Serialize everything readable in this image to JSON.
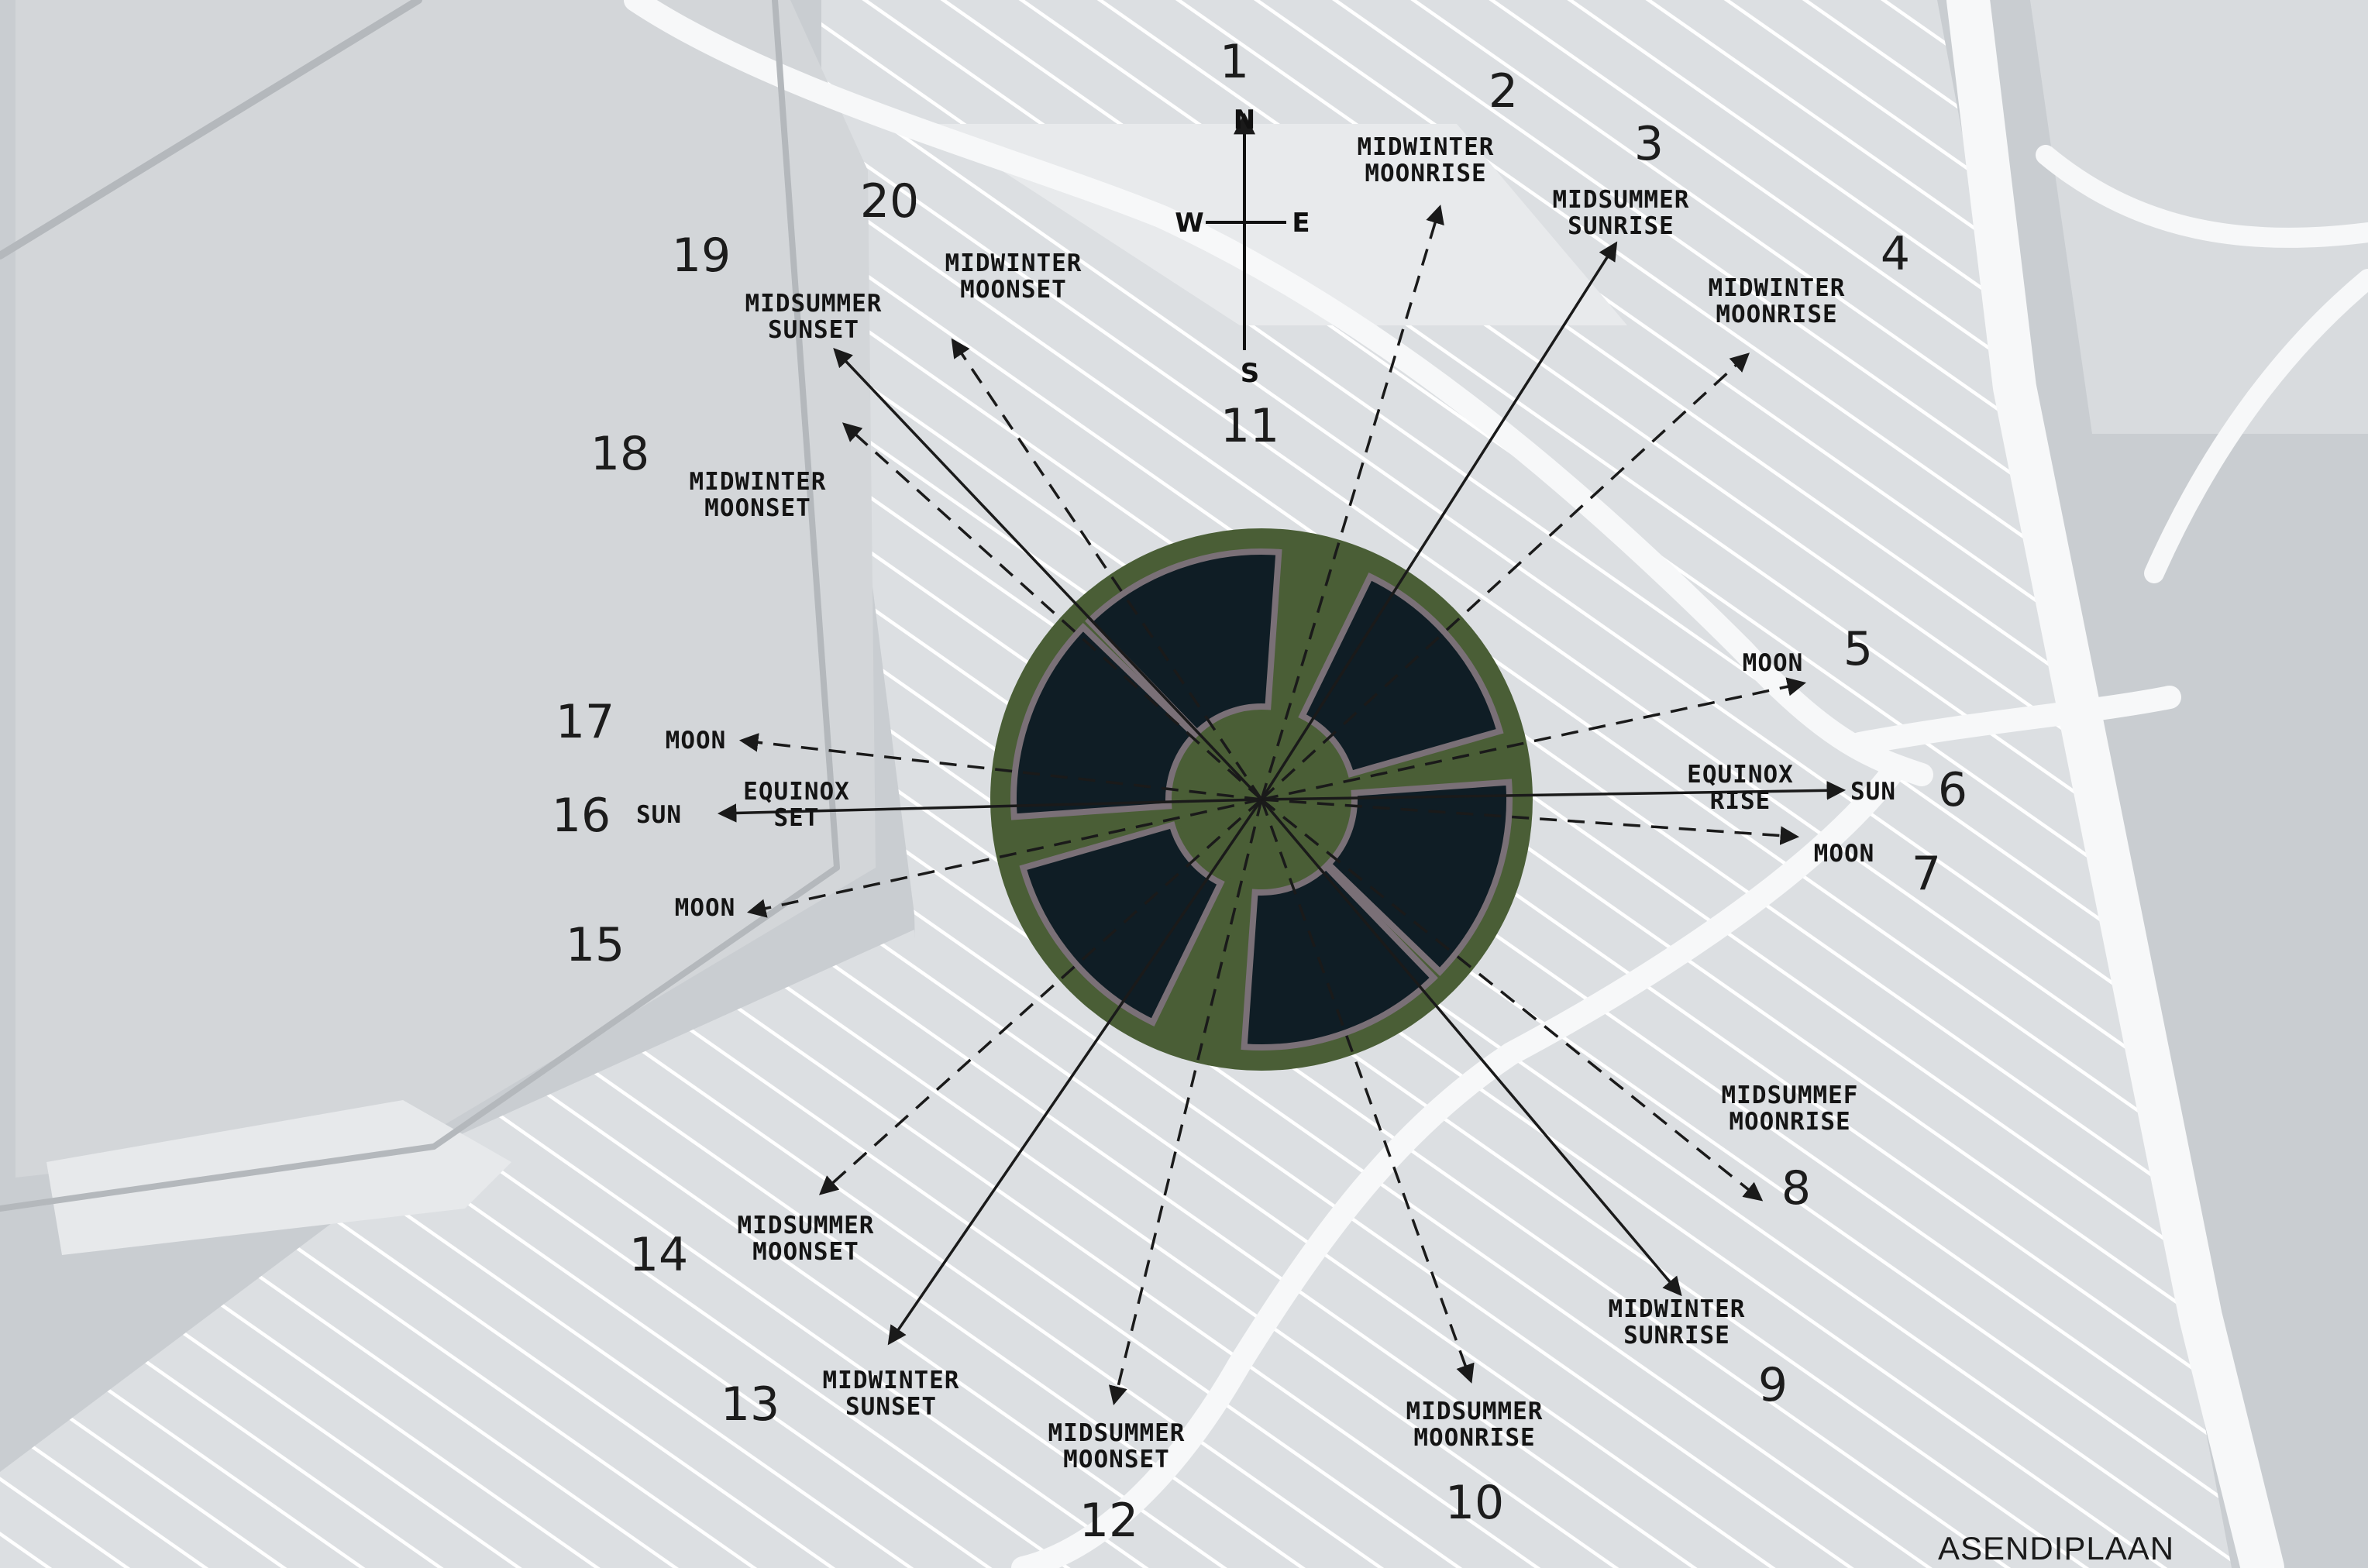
{
  "plan_title": "ASENDIPLAAN",
  "compass": {
    "n": "N",
    "s": "S",
    "e": "E",
    "w": "W"
  },
  "colors": {
    "map_background": "#c9cdd1",
    "map_light": "#e2e5e8",
    "road": "#f7f8f9",
    "disc_green": "#4a5e36",
    "window_dark": "#0f1d25",
    "ring_outline": "#7a7077",
    "line": "#1a1a1a"
  },
  "directions": [
    {
      "id": 1,
      "number": "1",
      "caption": [],
      "style": "none"
    },
    {
      "id": 2,
      "number": "2",
      "caption": [
        "MIDWINTER",
        "MOONRISE"
      ],
      "style": "dashed"
    },
    {
      "id": 3,
      "number": "3",
      "caption": [
        "MIDSUMMER",
        "SUNRISE"
      ],
      "style": "solid"
    },
    {
      "id": 4,
      "number": "4",
      "caption": [
        "MIDWINTER",
        "MOONRISE"
      ],
      "style": "dashed"
    },
    {
      "id": 5,
      "number": "5",
      "caption": [
        "MOON"
      ],
      "style": "dashed"
    },
    {
      "id": 6,
      "number": "6",
      "caption": [
        "EQUINOX",
        "RISE",
        "SUN"
      ],
      "style": "solid"
    },
    {
      "id": 7,
      "number": "7",
      "caption": [
        "MOON"
      ],
      "style": "dashed"
    },
    {
      "id": 8,
      "number": "8",
      "caption": [
        "MIDSUMMEF",
        "MOONRISE"
      ],
      "style": "dashed"
    },
    {
      "id": 9,
      "number": "9",
      "caption": [
        "MIDWINTER",
        "SUNRISE"
      ],
      "style": "solid"
    },
    {
      "id": 10,
      "number": "10",
      "caption": [
        "MIDSUMMER",
        "MOONRISE"
      ],
      "style": "dashed"
    },
    {
      "id": 11,
      "number": "11",
      "caption": [],
      "style": "none"
    },
    {
      "id": 12,
      "number": "12",
      "caption": [
        "MIDSUMMER",
        "MOONSET"
      ],
      "style": "dashed"
    },
    {
      "id": 13,
      "number": "13",
      "caption": [
        "MIDWINTER",
        "SUNSET"
      ],
      "style": "solid"
    },
    {
      "id": 14,
      "number": "14",
      "caption": [
        "MIDSUMMER",
        "MOONSET"
      ],
      "style": "dashed"
    },
    {
      "id": 15,
      "number": "15",
      "caption": [
        "MOON"
      ],
      "style": "dashed"
    },
    {
      "id": 16,
      "number": "16",
      "caption": [
        "EQUINOX",
        "SET",
        "SUN"
      ],
      "style": "solid"
    },
    {
      "id": 17,
      "number": "17",
      "caption": [
        "MOON"
      ],
      "style": "dashed"
    },
    {
      "id": 18,
      "number": "18",
      "caption": [
        "MIDWINTER",
        "MOONSET"
      ],
      "style": "dashed"
    },
    {
      "id": 19,
      "number": "19",
      "caption": [
        "MIDSUMMER",
        "SUNSET"
      ],
      "style": "solid"
    },
    {
      "id": 20,
      "number": "20",
      "caption": [
        "MIDWINTER",
        "MOONSET"
      ],
      "style": "dashed"
    }
  ]
}
